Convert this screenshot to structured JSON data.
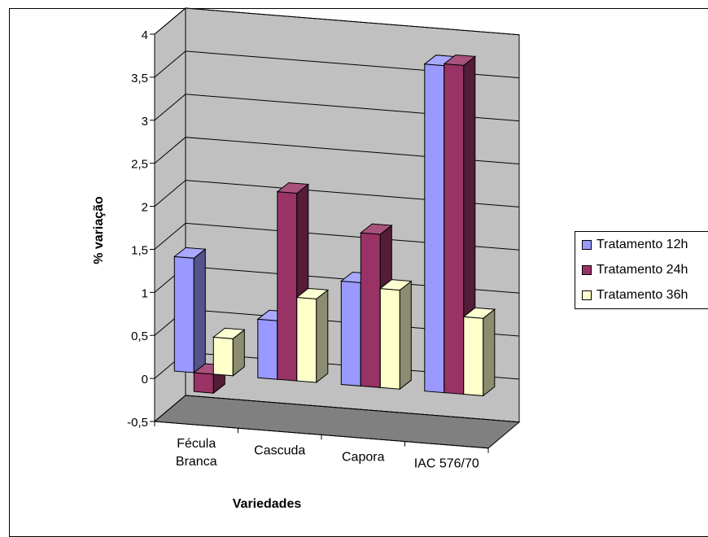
{
  "chart_data": {
    "type": "bar",
    "categories": [
      "Fécula Branca",
      "Cascuda",
      "Capora",
      "IAC 576/70"
    ],
    "category_lines": [
      [
        "Fécula",
        "Branca"
      ],
      [
        "Cascuda"
      ],
      [
        "Capora"
      ],
      [
        "IAC 576/70"
      ]
    ],
    "series": [
      {
        "name": "Tratamento 12h",
        "values": [
          1.33,
          0.68,
          1.2,
          3.8
        ],
        "color": "#9999ff"
      },
      {
        "name": "Tratamento 24h",
        "values": [
          -0.22,
          2.18,
          1.78,
          3.82
        ],
        "color": "#993366"
      },
      {
        "name": "Tratamento 36h",
        "values": [
          0.43,
          0.97,
          1.15,
          0.9
        ],
        "color": "#ffffcc"
      }
    ],
    "title": "",
    "xlabel": "Variedades",
    "ylabel": "% variação",
    "ylim": [
      -0.5,
      4
    ],
    "yticks": [
      "-0,5",
      "0",
      "0,5",
      "1",
      "1,5",
      "2",
      "2,5",
      "3",
      "3,5",
      "4"
    ],
    "grid": true,
    "legend_position": "right",
    "wall_color": "#c0c0c0",
    "floor_color": "#808080"
  }
}
